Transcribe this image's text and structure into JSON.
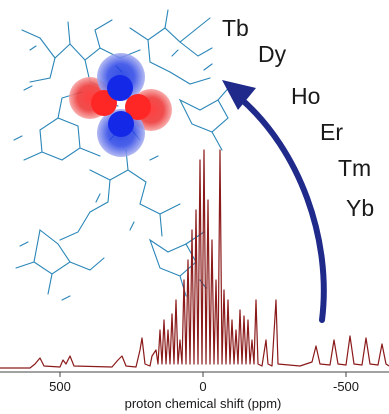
{
  "lanthanide_series": [
    "Tb",
    "Dy",
    "Ho",
    "Er",
    "Tm",
    "Yb"
  ],
  "axis": {
    "label": "proton chemical shift (ppm)",
    "ticks": [
      "500",
      "0",
      "-500"
    ]
  },
  "colors": {
    "spectrum": "#8b1a1a",
    "arrow": "#1f2a8a",
    "molecule": "#2a86b8",
    "orbital_positive": "#e8292c",
    "orbital_negative": "#2030d0"
  },
  "icons": {
    "molecule": "molecule-structure-icon",
    "orbital": "f-orbital-lobes-icon",
    "arrow": "curved-arrow-icon"
  }
}
